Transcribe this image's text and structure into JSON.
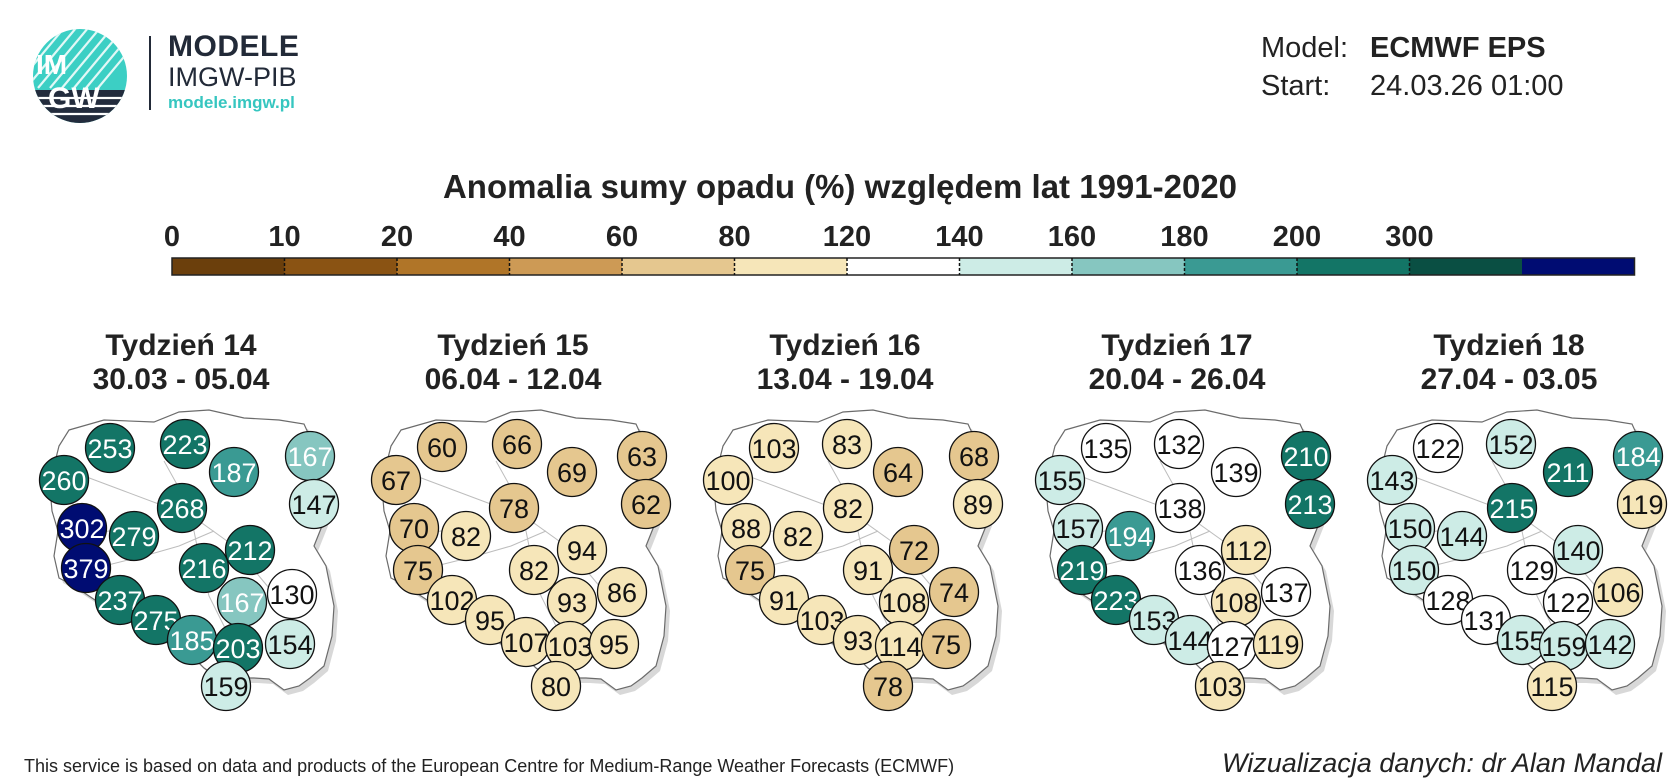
{
  "brand": {
    "logo_text_top": "IM",
    "logo_text_bottom": "GW",
    "title": "MODELE",
    "subtitle": "IMGW-PIB",
    "url": "modele.imgw.pl"
  },
  "meta": {
    "model_label": "Model:",
    "model_value": "ECMWF EPS",
    "start_label": "Start:",
    "start_value": "24.03.26 01:00"
  },
  "title": "Anomalia sumy opadu (%) względem lat 1991-2020",
  "colorbar": {
    "ticks": [
      "0",
      "10",
      "20",
      "40",
      "60",
      "80",
      "120",
      "140",
      "160",
      "180",
      "200",
      "300"
    ],
    "colors": [
      "#6b3f0c",
      "#8a5313",
      "#b07528",
      "#cd9a55",
      "#e5c78f",
      "#f6e6b9",
      "#ffffff",
      "#cdece6",
      "#86c6c0",
      "#3a9a93",
      "#137566",
      "#0a4f43",
      "#000c72"
    ]
  },
  "footer": {
    "left": "This service is based on data and products of the European Centre for Medium-Range Weather Forecasts (ECMWF)",
    "right": "Wizualizacja danych: dr Alan Mandal"
  },
  "weeks": [
    {
      "title": "Tydzień 14",
      "dates": "30.03 - 05.04",
      "values": [
        253,
        223,
        260,
        187,
        167,
        268,
        147,
        302,
        279,
        212,
        379,
        216,
        237,
        167,
        130,
        275,
        185,
        203,
        154,
        159
      ]
    },
    {
      "title": "Tydzień 15",
      "dates": "06.04 - 12.04",
      "values": [
        60,
        66,
        67,
        69,
        63,
        78,
        62,
        70,
        82,
        94,
        82,
        75,
        102,
        86,
        93,
        95,
        107,
        103,
        95,
        80
      ]
    },
    {
      "title": "Tydzień 16",
      "dates": "13.04 - 19.04",
      "values": [
        103,
        83,
        100,
        64,
        68,
        82,
        89,
        88,
        82,
        72,
        91,
        75,
        91,
        74,
        108,
        103,
        93,
        114,
        75,
        78
      ]
    },
    {
      "title": "Tydzień 17",
      "dates": "20.04 - 26.04",
      "values": [
        135,
        132,
        155,
        139,
        210,
        138,
        213,
        157,
        194,
        112,
        136,
        219,
        223,
        137,
        108,
        153,
        144,
        127,
        119,
        103
      ]
    },
    {
      "title": "Tydzień 18",
      "dates": "27.04 - 03.05",
      "values": [
        122,
        152,
        143,
        211,
        184,
        215,
        119,
        150,
        144,
        140,
        129,
        150,
        128,
        106,
        122,
        131,
        155,
        159,
        142,
        115
      ]
    }
  ]
}
